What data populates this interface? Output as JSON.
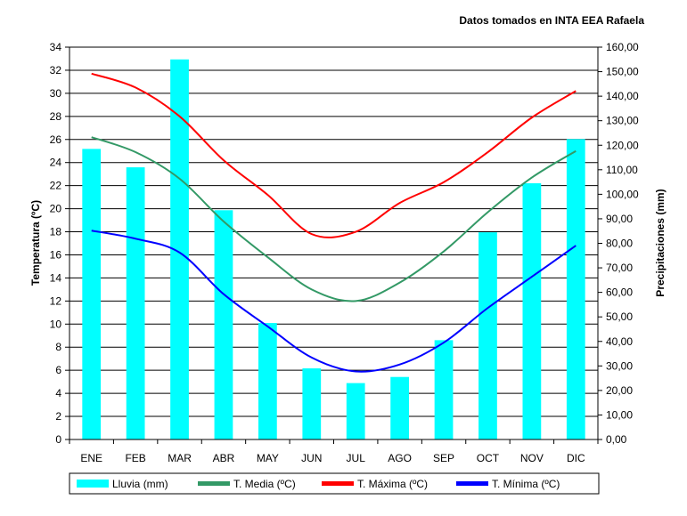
{
  "chart_data": {
    "type": "bar+line",
    "title": "",
    "note": "Datos tomados en INTA EEA Rafaela",
    "categories": [
      "ENE",
      "FEB",
      "MAR",
      "ABR",
      "MAY",
      "JUN",
      "JUL",
      "AGO",
      "SEP",
      "OCT",
      "NOV",
      "DIC"
    ],
    "y_left": {
      "label": "Temperatura (ºC)",
      "lim": [
        0,
        34
      ],
      "ticks": [
        "0",
        "2",
        "4",
        "6",
        "8",
        "10",
        "12",
        "14",
        "16",
        "18",
        "20",
        "22",
        "24",
        "26",
        "28",
        "30",
        "32",
        "34"
      ]
    },
    "y_right": {
      "label": "Precipitaciones (mm)",
      "lim": [
        0,
        160
      ],
      "ticks": [
        "0,00",
        "10,00",
        "20,00",
        "30,00",
        "40,00",
        "50,00",
        "60,00",
        "70,00",
        "80,00",
        "90,00",
        "100,00",
        "110,00",
        "120,00",
        "130,00",
        "140,00",
        "150,00",
        "160,00"
      ]
    },
    "grid": true,
    "legend_position": "bottom",
    "series": [
      {
        "name": "Lluvia (mm)",
        "kind": "bar",
        "axis": "right",
        "color": "#00ffff",
        "values": [
          118.5,
          111,
          155,
          93.5,
          47.5,
          29,
          23,
          25.5,
          40.5,
          84.5,
          104.5,
          122.5
        ]
      },
      {
        "name": "T. Media (ºC)",
        "kind": "line",
        "axis": "left",
        "color": "#339966",
        "values": [
          26.2,
          24.9,
          22.6,
          18.9,
          15.8,
          13.0,
          12.0,
          13.6,
          16.3,
          19.7,
          22.7,
          25.0
        ]
      },
      {
        "name": "T. Máxima (ºC)",
        "kind": "line",
        "axis": "left",
        "color": "#ff0000",
        "values": [
          31.7,
          30.5,
          28.0,
          24.2,
          21.2,
          17.8,
          18.0,
          20.5,
          22.3,
          24.9,
          27.9,
          30.2
        ]
      },
      {
        "name": "T. Mínima (ºC)",
        "kind": "line",
        "axis": "left",
        "color": "#0000ff",
        "values": [
          18.1,
          17.4,
          16.2,
          12.6,
          9.8,
          7.1,
          5.9,
          6.5,
          8.4,
          11.4,
          14.1,
          16.8
        ]
      }
    ]
  }
}
